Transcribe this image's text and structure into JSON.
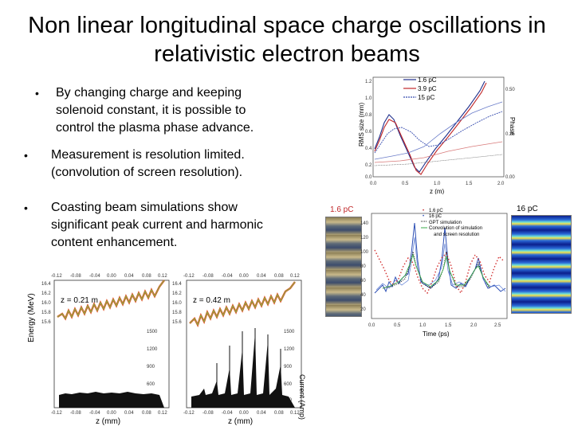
{
  "slide": {
    "title_line1": "Non linear longitudinal space charge oscillations in",
    "title_line2": "relativistic electron beams",
    "bullets": [
      {
        "marker": "•",
        "lines": [
          "By changing charge and keeping",
          "solenoid constant, it is possible to",
          "control the plasma phase advance."
        ]
      },
      {
        "marker": "•",
        "lines": [
          "Measurement is resolution limited.",
          "(convolution of screen resolution)."
        ]
      },
      {
        "marker": "•",
        "lines": [
          "Coasting beam simulations show",
          "significant peak current and harmonic",
          "content enhancement."
        ]
      }
    ]
  },
  "rms_plot": {
    "ylabel": "RMS size (mm)",
    "xlabel": "z (m)",
    "y2label": "Phase",
    "legend": [
      "1.6 pC",
      "3.9 pC",
      "15 pC"
    ],
    "yticks": [
      "1.2",
      "1.0",
      "0.8",
      "0.6",
      "0.4",
      "0.2",
      "0.0"
    ],
    "xticks": [
      "0.0",
      "0.5",
      "1.0",
      "1.5",
      "2.0"
    ],
    "y2ticks": [
      "0.50",
      "0.25",
      "0.00"
    ],
    "colors": {
      "s1": "#1f2f8c",
      "s2": "#c0282a",
      "s3": "#3a4fb0"
    }
  },
  "time_plot": {
    "label_left": "1.6 pC",
    "label_right": "16 pC",
    "legend": [
      "1.6 pC",
      "16 pC",
      "GPT simulation",
      "Convolution of simulation",
      "and screen resolution"
    ],
    "xlabel": "Time (ps)",
    "yticks": [
      "140",
      "120",
      "100",
      "80",
      "60",
      "40",
      "20"
    ],
    "xticks": [
      "0.0",
      "0.5",
      "1.0",
      "1.5",
      "2.0",
      "2.5"
    ]
  },
  "phase_plots": {
    "ylabel": "Energy (MeV)",
    "xlabel": "z (mm)",
    "y2label": "Current (Amp)",
    "left_label": "z = 0.21 m",
    "right_label": "z = 0.42 m",
    "top_ticks_left": [
      "-0.12",
      "-0.08",
      "-0.04",
      "0.00",
      "0.04",
      "0.08",
      "0.12"
    ],
    "top_ticks_right": [
      "-0.12",
      "-0.08",
      "-0.04",
      "0.00",
      "0.04",
      "0.08",
      "0.12"
    ],
    "energy_ticks": [
      "16.4",
      "16.2",
      "16.0",
      "15.8",
      "15.6",
      "15.4",
      "15.2",
      "15.0",
      "14.8"
    ],
    "current_ticks_left": [
      "1500",
      "1200",
      "900",
      "600",
      "300"
    ],
    "current_ticks_right": [
      "1500",
      "1200",
      "900",
      "600",
      "300"
    ],
    "bottom_ticks": [
      "-0.12",
      "-0.08",
      "-0.04",
      "0.00",
      "0.04",
      "0.08",
      "0.12"
    ]
  }
}
